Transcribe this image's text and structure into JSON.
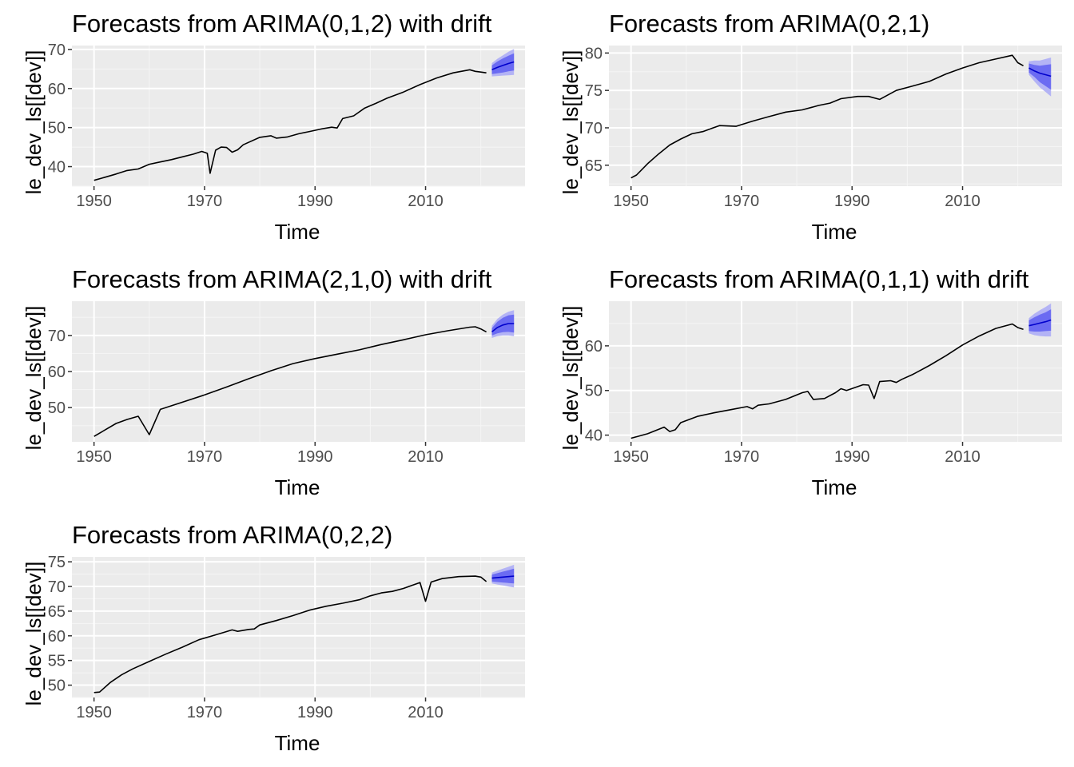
{
  "chart_data": [
    {
      "type": "line",
      "title": "Forecasts from ARIMA(0,1,2) with drift",
      "xlabel": "Time",
      "ylabel": "le_dev_ls[[dev]]",
      "xlim": [
        1946,
        2028
      ],
      "ylim": [
        35,
        71
      ],
      "x_ticks": [
        1950,
        1970,
        1990,
        2010
      ],
      "y_ticks": [
        40,
        50,
        60,
        70
      ],
      "series": [
        {
          "x": [
            1950,
            1952,
            1954,
            1956,
            1958,
            1960,
            1962,
            1964,
            1966,
            1968,
            1969.5,
            1970.5,
            1971,
            1972,
            1973,
            1974,
            1975,
            1976,
            1977,
            1980,
            1982,
            1983,
            1985,
            1987,
            1989,
            1991,
            1993,
            1994,
            1995,
            1997,
            1999,
            2001,
            2003,
            2006,
            2009,
            2012,
            2015,
            2018,
            2019,
            2020,
            2021
          ],
          "values": [
            36.5,
            37.3,
            38.1,
            39.0,
            39.4,
            40.6,
            41.2,
            41.8,
            42.5,
            43.2,
            43.9,
            43.4,
            38.3,
            44.2,
            45.0,
            44.9,
            43.7,
            44.3,
            45.6,
            47.5,
            47.9,
            47.3,
            47.6,
            48.4,
            49.0,
            49.6,
            50.1,
            49.9,
            52.3,
            53.0,
            55.0,
            56.2,
            57.5,
            59.1,
            61.0,
            62.7,
            64.0,
            64.8,
            64.4,
            64.2,
            64.0
          ]
        },
        {
          "name": "forecast",
          "x": [
            2022,
            2023,
            2024,
            2025,
            2026
          ],
          "values": [
            64.8,
            65.4,
            65.9,
            66.4,
            66.8
          ],
          "lo80": [
            63.7,
            63.9,
            64.1,
            64.4,
            64.6
          ],
          "hi80": [
            65.9,
            66.9,
            67.7,
            68.4,
            69.0
          ],
          "lo95": [
            63.1,
            63.2,
            63.3,
            63.4,
            63.5
          ],
          "hi95": [
            66.5,
            67.6,
            68.5,
            69.4,
            70.1
          ]
        }
      ]
    },
    {
      "type": "line",
      "title": "Forecasts from ARIMA(0,2,1)",
      "xlabel": "Time",
      "ylabel": "le_dev_ls[[dev]]",
      "xlim": [
        1946,
        2028
      ],
      "ylim": [
        62.2,
        81.0
      ],
      "x_ticks": [
        1950,
        1970,
        1990,
        2010
      ],
      "y_ticks": [
        65,
        70,
        75,
        80
      ],
      "series": [
        {
          "x": [
            1950,
            1951,
            1953,
            1955,
            1957,
            1959,
            1961,
            1963,
            1966,
            1969,
            1972,
            1975,
            1978,
            1981,
            1984,
            1986,
            1988,
            1991,
            1993,
            1995,
            1998,
            2001,
            2004,
            2007,
            2010,
            2013,
            2016,
            2019,
            2020,
            2021
          ],
          "values": [
            63.3,
            63.7,
            65.2,
            66.5,
            67.7,
            68.5,
            69.2,
            69.5,
            70.3,
            70.2,
            70.9,
            71.5,
            72.1,
            72.4,
            73.0,
            73.3,
            73.9,
            74.2,
            74.2,
            73.8,
            75.0,
            75.6,
            76.2,
            77.2,
            78.0,
            78.7,
            79.2,
            79.7,
            78.7,
            78.3
          ]
        },
        {
          "name": "forecast",
          "x": [
            2022,
            2023,
            2024,
            2025,
            2026
          ],
          "values": [
            78.0,
            77.6,
            77.3,
            77.1,
            76.9
          ],
          "lo80": [
            77.4,
            76.8,
            76.1,
            75.6,
            75.1
          ],
          "hi80": [
            78.6,
            78.4,
            78.3,
            78.4,
            78.5
          ],
          "lo95": [
            77.1,
            76.2,
            75.4,
            74.8,
            74.2
          ],
          "hi95": [
            78.9,
            79.0,
            79.0,
            79.2,
            79.4
          ]
        }
      ]
    },
    {
      "type": "line",
      "title": "Forecasts from ARIMA(2,1,0) with drift",
      "xlabel": "Time",
      "ylabel": "le_dev_ls[[dev]]",
      "xlim": [
        1946,
        2028
      ],
      "ylim": [
        40.5,
        79.5
      ],
      "x_ticks": [
        1950,
        1970,
        1990,
        2010
      ],
      "y_ticks": [
        50,
        60,
        70
      ],
      "series": [
        {
          "x": [
            1950,
            1952,
            1954,
            1956,
            1958,
            1960,
            1962,
            1964,
            1966,
            1970,
            1974,
            1978,
            1982,
            1986,
            1990,
            1994,
            1998,
            2002,
            2006,
            2010,
            2014,
            2018,
            2019,
            2020,
            2021
          ],
          "values": [
            42.0,
            43.8,
            45.6,
            46.7,
            47.6,
            42.5,
            49.5,
            50.5,
            51.5,
            53.5,
            55.7,
            58.0,
            60.2,
            62.2,
            63.6,
            64.8,
            66.0,
            67.5,
            68.8,
            70.2,
            71.3,
            72.3,
            72.4,
            71.8,
            71.0
          ]
        },
        {
          "name": "forecast",
          "x": [
            2022,
            2023,
            2024,
            2025,
            2026
          ],
          "values": [
            71.0,
            72.2,
            72.9,
            73.3,
            73.3
          ],
          "lo80": [
            70.0,
            70.6,
            70.9,
            71.0,
            70.8
          ],
          "hi80": [
            72.0,
            73.8,
            74.9,
            75.6,
            75.8
          ],
          "lo95": [
            69.3,
            69.8,
            70.0,
            70.0,
            69.8
          ],
          "hi95": [
            72.7,
            74.6,
            75.8,
            76.6,
            77.0
          ]
        }
      ]
    },
    {
      "type": "line",
      "title": "Forecasts from ARIMA(0,1,1) with drift",
      "xlabel": "Time",
      "ylabel": "le_dev_ls[[dev]]",
      "xlim": [
        1946,
        2028
      ],
      "ylim": [
        38.5,
        70.0
      ],
      "x_ticks": [
        1950,
        1970,
        1990,
        2010
      ],
      "y_ticks": [
        40,
        50,
        60
      ],
      "series": [
        {
          "x": [
            1950,
            1953,
            1956,
            1957,
            1958,
            1959,
            1962,
            1965,
            1968,
            1971,
            1972,
            1973,
            1975,
            1978,
            1981,
            1982,
            1983,
            1985,
            1987,
            1988,
            1989,
            1992,
            1993,
            1994,
            1995,
            1997,
            1998,
            1999,
            2001,
            2004,
            2007,
            2010,
            2013,
            2016,
            2019,
            2020,
            2021
          ],
          "values": [
            39.3,
            40.3,
            41.8,
            40.8,
            41.2,
            42.8,
            44.2,
            45.0,
            45.7,
            46.4,
            45.9,
            46.7,
            47.0,
            48.0,
            49.5,
            49.8,
            48.0,
            48.2,
            49.5,
            50.4,
            50.0,
            51.3,
            51.2,
            48.2,
            52.0,
            52.2,
            51.8,
            52.5,
            53.6,
            55.6,
            57.8,
            60.2,
            62.2,
            63.9,
            64.9,
            64.1,
            63.7
          ]
        },
        {
          "name": "forecast",
          "x": [
            2022,
            2023,
            2024,
            2025,
            2026
          ],
          "values": [
            64.5,
            64.8,
            65.1,
            65.4,
            65.8
          ],
          "lo80": [
            63.3,
            63.2,
            63.2,
            63.3,
            63.4
          ],
          "hi80": [
            65.7,
            66.4,
            67.0,
            67.5,
            68.2
          ],
          "lo95": [
            62.8,
            62.4,
            62.2,
            62.1,
            62.1
          ],
          "hi95": [
            66.2,
            67.2,
            68.0,
            68.7,
            69.5
          ]
        }
      ]
    },
    {
      "type": "line",
      "title": "Forecasts from ARIMA(0,2,2)",
      "xlabel": "Time",
      "ylabel": "le_dev_ls[[dev]]",
      "xlim": [
        1946,
        2028
      ],
      "ylim": [
        47.5,
        76.0
      ],
      "x_ticks": [
        1950,
        1970,
        1990,
        2010
      ],
      "y_ticks": [
        50,
        55,
        60,
        65,
        70,
        75
      ],
      "series": [
        {
          "x": [
            1950,
            1951,
            1953,
            1955,
            1957,
            1960,
            1963,
            1966,
            1969,
            1972,
            1975,
            1976,
            1978,
            1979,
            1980,
            1983,
            1986,
            1989,
            1992,
            1995,
            1998,
            2000,
            2002,
            2004,
            2006,
            2009,
            2010,
            2011,
            2013,
            2016,
            2019,
            2020,
            2021
          ],
          "values": [
            48.5,
            48.6,
            50.6,
            52.1,
            53.3,
            54.8,
            56.3,
            57.7,
            59.2,
            60.2,
            61.2,
            60.9,
            61.3,
            61.4,
            62.2,
            63.1,
            64.1,
            65.2,
            66.0,
            66.6,
            67.3,
            68.1,
            68.7,
            69.0,
            69.6,
            70.8,
            67.0,
            70.9,
            71.6,
            72.0,
            72.1,
            71.9,
            71.0
          ]
        },
        {
          "name": "forecast",
          "x": [
            2022,
            2023,
            2024,
            2025,
            2026
          ],
          "values": [
            71.7,
            71.8,
            71.9,
            72.0,
            72.1
          ],
          "lo80": [
            71.0,
            70.9,
            70.8,
            70.7,
            70.6
          ],
          "hi80": [
            72.4,
            72.7,
            73.0,
            73.3,
            73.6
          ],
          "lo95": [
            70.6,
            70.4,
            70.2,
            70.0,
            69.8
          ],
          "hi95": [
            72.8,
            73.2,
            73.6,
            74.0,
            74.4
          ]
        }
      ]
    }
  ],
  "colors": {
    "panel_bg": "#ebebeb",
    "grid_major": "#ffffff",
    "grid_minor": "#f5f5f5",
    "series_line": "#000000",
    "forecast_line": "#0000cc",
    "band95": "#b3b3f5",
    "band80": "#6b6bf2",
    "tick_text": "#4d4d4d"
  }
}
